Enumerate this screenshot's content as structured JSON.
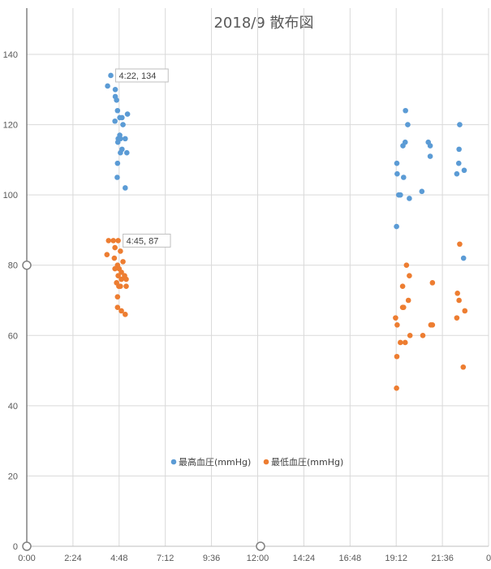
{
  "chart_data": {
    "type": "scatter",
    "title": "2018/9 散布図",
    "xlabel": "",
    "ylabel": "",
    "xlim": [
      "0:00",
      "24:00"
    ],
    "ylim": [
      0,
      140
    ],
    "x_ticks": [
      "0:00",
      "2:24",
      "4:48",
      "7:12",
      "9:36",
      "12:00",
      "14:24",
      "16:48",
      "19:12",
      "21:36",
      "0"
    ],
    "y_ticks": [
      "0",
      "20",
      "40",
      "60",
      "80",
      "100",
      "120",
      "140"
    ],
    "grid": true,
    "legend_position": "bottom-center",
    "series": [
      {
        "name": "最高血圧(mmHg)",
        "color": "#5B9BD5",
        "points": [
          [
            "4:22",
            134
          ],
          [
            "4:12",
            131
          ],
          [
            "4:36",
            130
          ],
          [
            "4:36",
            128
          ],
          [
            "4:40",
            127
          ],
          [
            "4:43",
            124
          ],
          [
            "4:57",
            122
          ],
          [
            "4:50",
            122
          ],
          [
            "5:14",
            123
          ],
          [
            "4:35",
            121
          ],
          [
            "5:00",
            120
          ],
          [
            "4:50",
            117
          ],
          [
            "4:45",
            116
          ],
          [
            "4:52",
            116
          ],
          [
            "5:07",
            116
          ],
          [
            "4:44",
            115
          ],
          [
            "4:57",
            113
          ],
          [
            "4:52",
            112
          ],
          [
            "5:12",
            112
          ],
          [
            "4:43",
            109
          ],
          [
            "4:42",
            105
          ],
          [
            "5:07",
            102
          ],
          [
            "19:41",
            124
          ],
          [
            "19:48",
            120
          ],
          [
            "19:40",
            115
          ],
          [
            "19:33",
            114
          ],
          [
            "20:52",
            115
          ],
          [
            "20:58",
            114
          ],
          [
            "20:58",
            111
          ],
          [
            "19:14",
            109
          ],
          [
            "19:15",
            106
          ],
          [
            "19:35",
            105
          ],
          [
            "19:20",
            100
          ],
          [
            "19:25",
            100
          ],
          [
            "19:53",
            99
          ],
          [
            "20:32",
            101
          ],
          [
            "19:13",
            91
          ],
          [
            "22:30",
            120
          ],
          [
            "22:28",
            113
          ],
          [
            "22:27",
            109
          ],
          [
            "22:21",
            106
          ],
          [
            "22:44",
            107
          ],
          [
            "22:42",
            82
          ]
        ]
      },
      {
        "name": "最低血圧(mmHg)",
        "color": "#ED7D31",
        "points": [
          [
            "4:45",
            87
          ],
          [
            "4:15",
            87
          ],
          [
            "4:30",
            87
          ],
          [
            "4:35",
            85
          ],
          [
            "4:52",
            84
          ],
          [
            "4:10",
            83
          ],
          [
            "4:33",
            82
          ],
          [
            "5:00",
            81
          ],
          [
            "4:43",
            80
          ],
          [
            "4:48",
            79
          ],
          [
            "4:35",
            79
          ],
          [
            "4:55",
            78
          ],
          [
            "5:05",
            77
          ],
          [
            "4:45",
            77
          ],
          [
            "4:55",
            76
          ],
          [
            "5:10",
            76
          ],
          [
            "4:40",
            75
          ],
          [
            "4:52",
            74
          ],
          [
            "4:47",
            74
          ],
          [
            "5:10",
            74
          ],
          [
            "4:43",
            71
          ],
          [
            "4:43",
            68
          ],
          [
            "4:55",
            67
          ],
          [
            "5:07",
            66
          ],
          [
            "19:44",
            80
          ],
          [
            "19:53",
            77
          ],
          [
            "19:32",
            74
          ],
          [
            "19:35",
            68
          ],
          [
            "19:32",
            68
          ],
          [
            "19:50",
            70
          ],
          [
            "19:10",
            65
          ],
          [
            "19:15",
            63
          ],
          [
            "19:55",
            60
          ],
          [
            "20:35",
            60
          ],
          [
            "21:00",
            63
          ],
          [
            "21:05",
            63
          ],
          [
            "21:05",
            75
          ],
          [
            "19:25",
            58
          ],
          [
            "19:40",
            58
          ],
          [
            "19:14",
            54
          ],
          [
            "19:13",
            45
          ],
          [
            "22:30",
            86
          ],
          [
            "22:23",
            72
          ],
          [
            "22:28",
            70
          ],
          [
            "22:46",
            67
          ],
          [
            "22:21",
            65
          ],
          [
            "22:41",
            51
          ]
        ]
      }
    ],
    "data_labels": [
      {
        "series": 0,
        "x": "4:22",
        "y": 134,
        "text": "4:22, 134"
      },
      {
        "series": 1,
        "x": "4:45",
        "y": 87,
        "text": "4:45, 87"
      }
    ]
  }
}
